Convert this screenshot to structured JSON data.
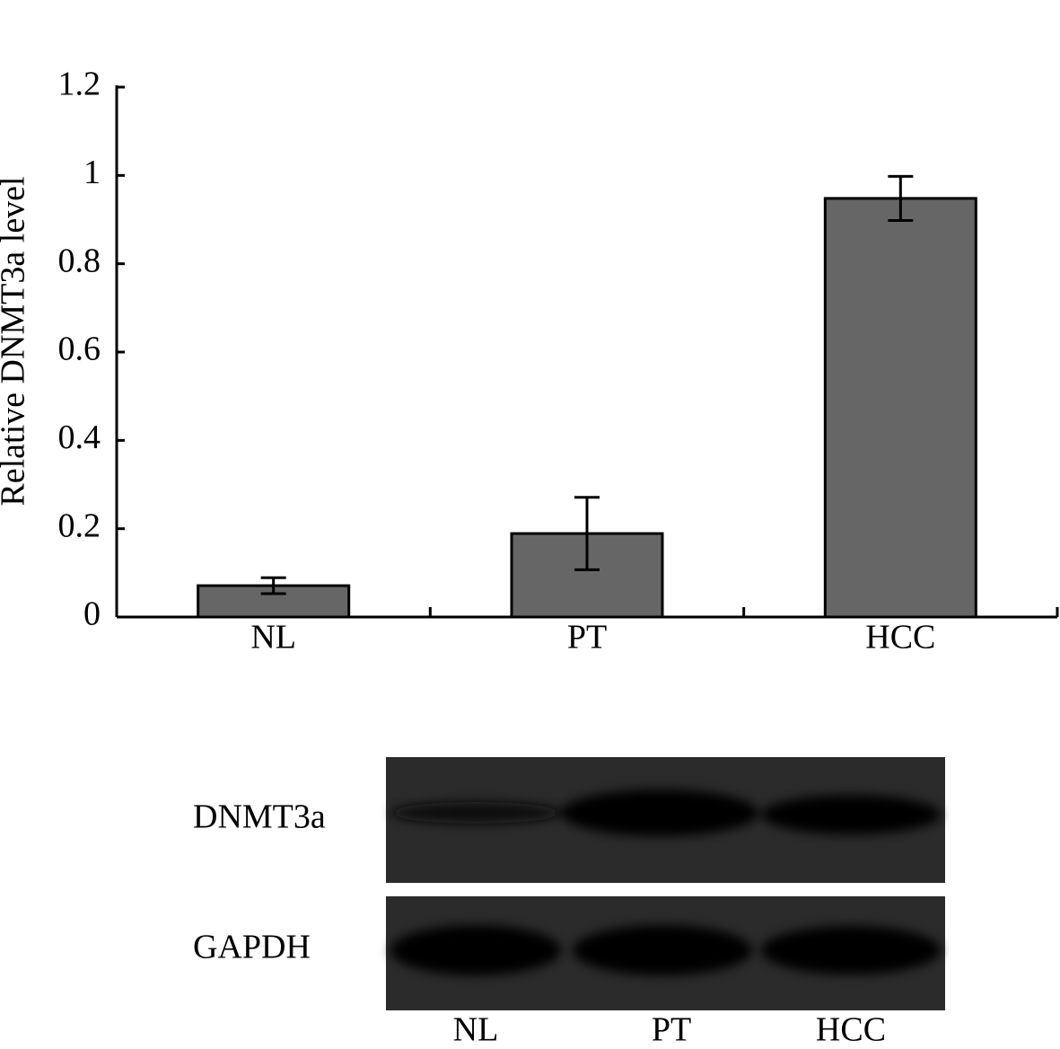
{
  "chart_data": {
    "type": "bar",
    "ylabel": "Relative DNMT3a level",
    "categories": [
      "NL",
      "PT",
      "HCC"
    ],
    "values": [
      0.071,
      0.189,
      0.948
    ],
    "errors": [
      0.018,
      0.082,
      0.05
    ],
    "color": "#666666",
    "ylim": [
      0,
      1.2
    ],
    "yticks": [
      0,
      0.2,
      0.4,
      0.6,
      0.8,
      1,
      1.2
    ],
    "grid": false
  },
  "blot": {
    "rows": [
      "DNMT3a",
      "GAPDH"
    ],
    "lanes": [
      "NL",
      "PT",
      "HCC"
    ]
  }
}
